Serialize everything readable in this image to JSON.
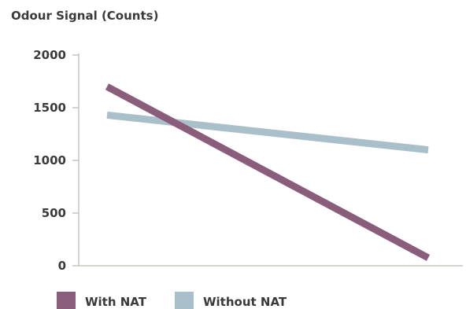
{
  "chart_data": {
    "type": "line",
    "title": "",
    "xlabel": "",
    "ylabel": "Odour Signal (Counts)",
    "ylim": [
      0,
      2000
    ],
    "yticks": [
      0,
      500,
      1000,
      1500,
      2000
    ],
    "grid": false,
    "legend": "bottom-left",
    "x": [
      0,
      1
    ],
    "series": [
      {
        "name": "With NAT",
        "color": "#8a5d7b",
        "values": [
          1700,
          75
        ]
      },
      {
        "name": "Without NAT",
        "color": "#a9bfca",
        "values": [
          1430,
          1100
        ]
      }
    ]
  }
}
